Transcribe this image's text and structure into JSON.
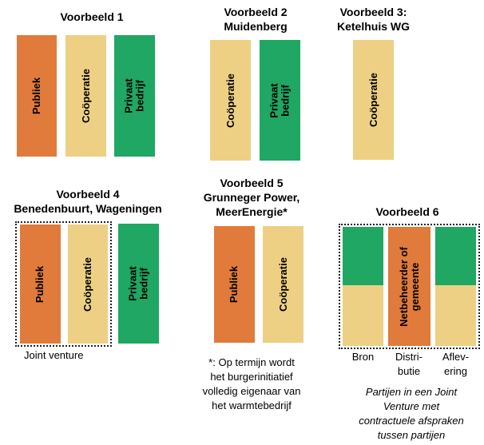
{
  "colors": {
    "publiek": "#e07b3b",
    "cooperatie": "#edd084",
    "privaat": "#1fa763"
  },
  "examples": [
    {
      "title": "Voorbeeld 1",
      "bars": [
        "Publiek",
        "Coöperatie",
        "Privaat\nbedrijf"
      ]
    },
    {
      "title": "Voorbeeld 2",
      "subtitle": "Muidenberg",
      "bars": [
        "Coöperatie",
        "Privaat\nbedrijf"
      ]
    },
    {
      "title": "Voorbeeld 3:",
      "subtitle": "Ketelhuis WG",
      "bars": [
        "Coöperatie"
      ]
    },
    {
      "title": "Voorbeeld 4",
      "subtitle": "Benedenbuurt, Wageningen",
      "bars": [
        "Publiek",
        "Coöperatie",
        "Privaat\nbedrijf"
      ],
      "caption": "Joint venture"
    },
    {
      "title": "Voorbeeld 5",
      "subtitle": "Grunneger Power,",
      "subtitle2": "MeerEnergie*",
      "bars": [
        "Publiek",
        "Coöperatie"
      ],
      "note": [
        "*: Op termijn wordt",
        "het burgerinitiatief",
        "volledig eigenaar van",
        "het warmtebedrijf"
      ]
    },
    {
      "title": "Voorbeeld 6",
      "bars": [
        "Netbeheerder of\ngemeente"
      ],
      "columns": [
        "Bron",
        "Distri-\nbutie",
        "Aflev-\nering"
      ],
      "note": [
        "Partijen in een Joint",
        "Venture met",
        "contractuele afspraken",
        "tussen partijen"
      ]
    }
  ]
}
